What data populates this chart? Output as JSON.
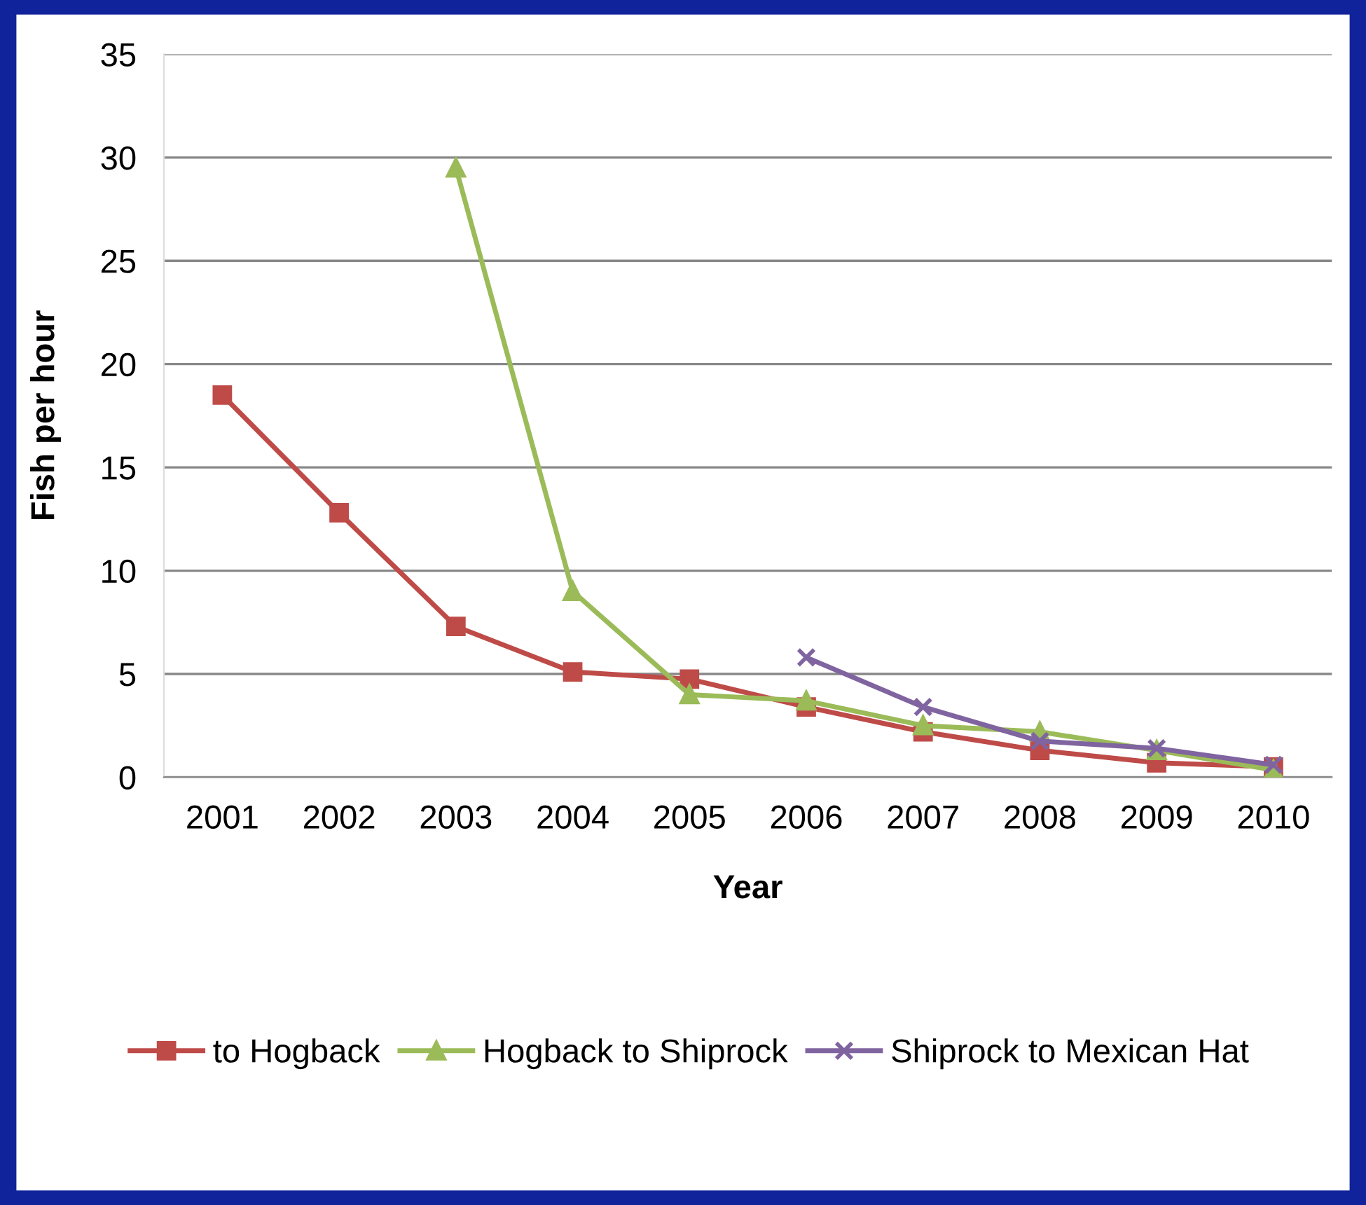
{
  "chart_data": {
    "type": "line",
    "xlabel": "Year",
    "ylabel": "Fish per hour",
    "categories": [
      "2001",
      "2002",
      "2003",
      "2004",
      "2005",
      "2006",
      "2007",
      "2008",
      "2009",
      "2010"
    ],
    "series": [
      {
        "name": "to Hogback",
        "color": "#be4b48",
        "marker": "square",
        "values": [
          18.5,
          12.8,
          7.3,
          5.1,
          4.75,
          3.4,
          2.2,
          1.3,
          0.7,
          0.5
        ]
      },
      {
        "name": "Hogback to Shiprock",
        "color": "#9bbb59",
        "marker": "triangle",
        "values": [
          null,
          null,
          29.5,
          9.0,
          4.0,
          3.7,
          2.5,
          2.2,
          1.3,
          0.35
        ]
      },
      {
        "name": "Shiprock to Mexican Hat",
        "color": "#7f64a0",
        "marker": "cross",
        "values": [
          null,
          null,
          null,
          null,
          null,
          5.8,
          3.4,
          1.75,
          1.4,
          0.6
        ]
      }
    ],
    "ylim": [
      0,
      35
    ],
    "yticks": [
      0,
      5,
      10,
      15,
      20,
      25,
      30,
      35
    ],
    "grid": "y",
    "legend": "bottom",
    "line_style": "solid"
  }
}
